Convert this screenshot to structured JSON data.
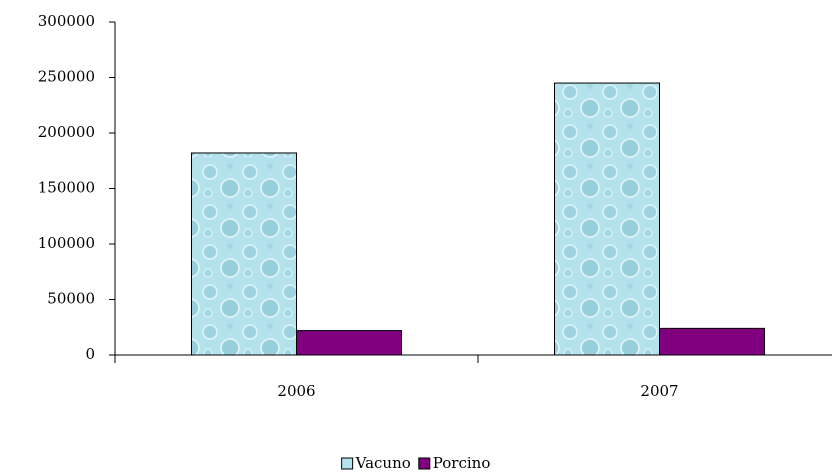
{
  "chart_data": {
    "type": "bar",
    "categories": [
      "2006",
      "2007"
    ],
    "series": [
      {
        "name": "Vacuno",
        "color": "#b4e2ec",
        "values": [
          182000,
          245000
        ]
      },
      {
        "name": "Porcino",
        "color": "#800080",
        "values": [
          22000,
          24000
        ]
      }
    ],
    "ylim": [
      0,
      300000
    ],
    "yticks": [
      0,
      50000,
      100000,
      150000,
      200000,
      250000,
      300000
    ],
    "legend": "bottom"
  }
}
